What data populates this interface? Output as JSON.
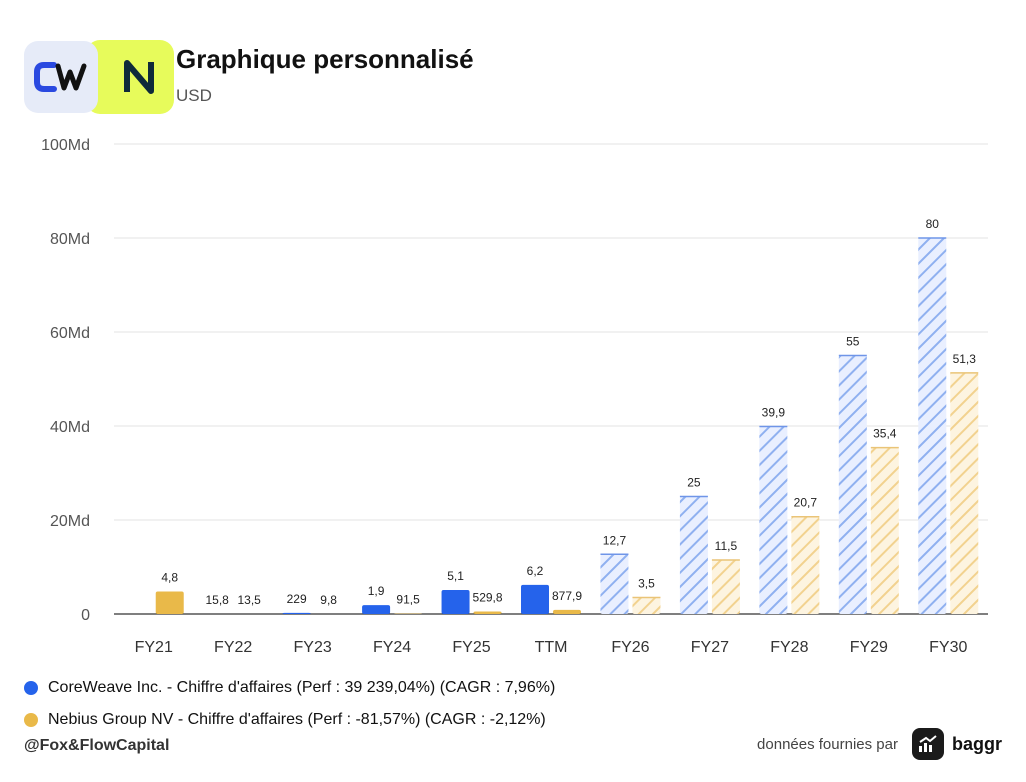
{
  "header": {
    "title": "Graphique personnalisé",
    "subtitle": "USD"
  },
  "legend": {
    "items": [
      {
        "label": "CoreWeave Inc. - Chiffre d'affaires (Perf : 39 239,04%) (CAGR : 7,96%)",
        "color": "#2563eb"
      },
      {
        "label": "Nebius Group NV - Chiffre d'affaires (Perf : -81,57%) (CAGR : -2,12%)",
        "color": "#e9b949"
      }
    ]
  },
  "footer": {
    "handle": "@Fox&FlowCapital",
    "source_text": "données fournies par",
    "brand": "baggr"
  },
  "colors": {
    "coreweave": "#2563eb",
    "coreweave_estimate": "#9db8f2",
    "nebius": "#e9b949",
    "nebius_estimate": "#f5d89a",
    "grid": "#e3e3e3"
  },
  "chart_data": {
    "type": "bar",
    "categories": [
      "FY21",
      "FY22",
      "FY23",
      "FY24",
      "FY25",
      "TTM",
      "FY26",
      "FY27",
      "FY28",
      "FY29",
      "FY30"
    ],
    "estimated_from_index": 6,
    "y_ticks": [
      "0",
      "20Md",
      "40Md",
      "60Md",
      "80Md",
      "100Md"
    ],
    "ylim": [
      0,
      100
    ],
    "y_unit": "Md USD",
    "grid": true,
    "legend_position": "bottom-left",
    "series": [
      {
        "name": "CoreWeave Inc. - Chiffre d'affaires",
        "values": [
          0,
          0.0158,
          0.229,
          1.9,
          5.1,
          6.2,
          12.7,
          25,
          39.9,
          55,
          80
        ],
        "labels": [
          "",
          "15,8",
          "229",
          "1,9",
          "5,1",
          "6,2",
          "12,7",
          "25",
          "39,9",
          "55",
          "80"
        ]
      },
      {
        "name": "Nebius Group NV - Chiffre d'affaires",
        "values": [
          4.8,
          0.0135,
          0.0098,
          0.0915,
          0.5298,
          0.8779,
          3.5,
          11.5,
          20.7,
          35.4,
          51.3
        ],
        "labels": [
          "4,8",
          "13,5",
          "9,8",
          "91,5",
          "529,8",
          "877,9",
          "3,5",
          "11,5",
          "20,7",
          "35,4",
          "51,3"
        ]
      }
    ]
  }
}
